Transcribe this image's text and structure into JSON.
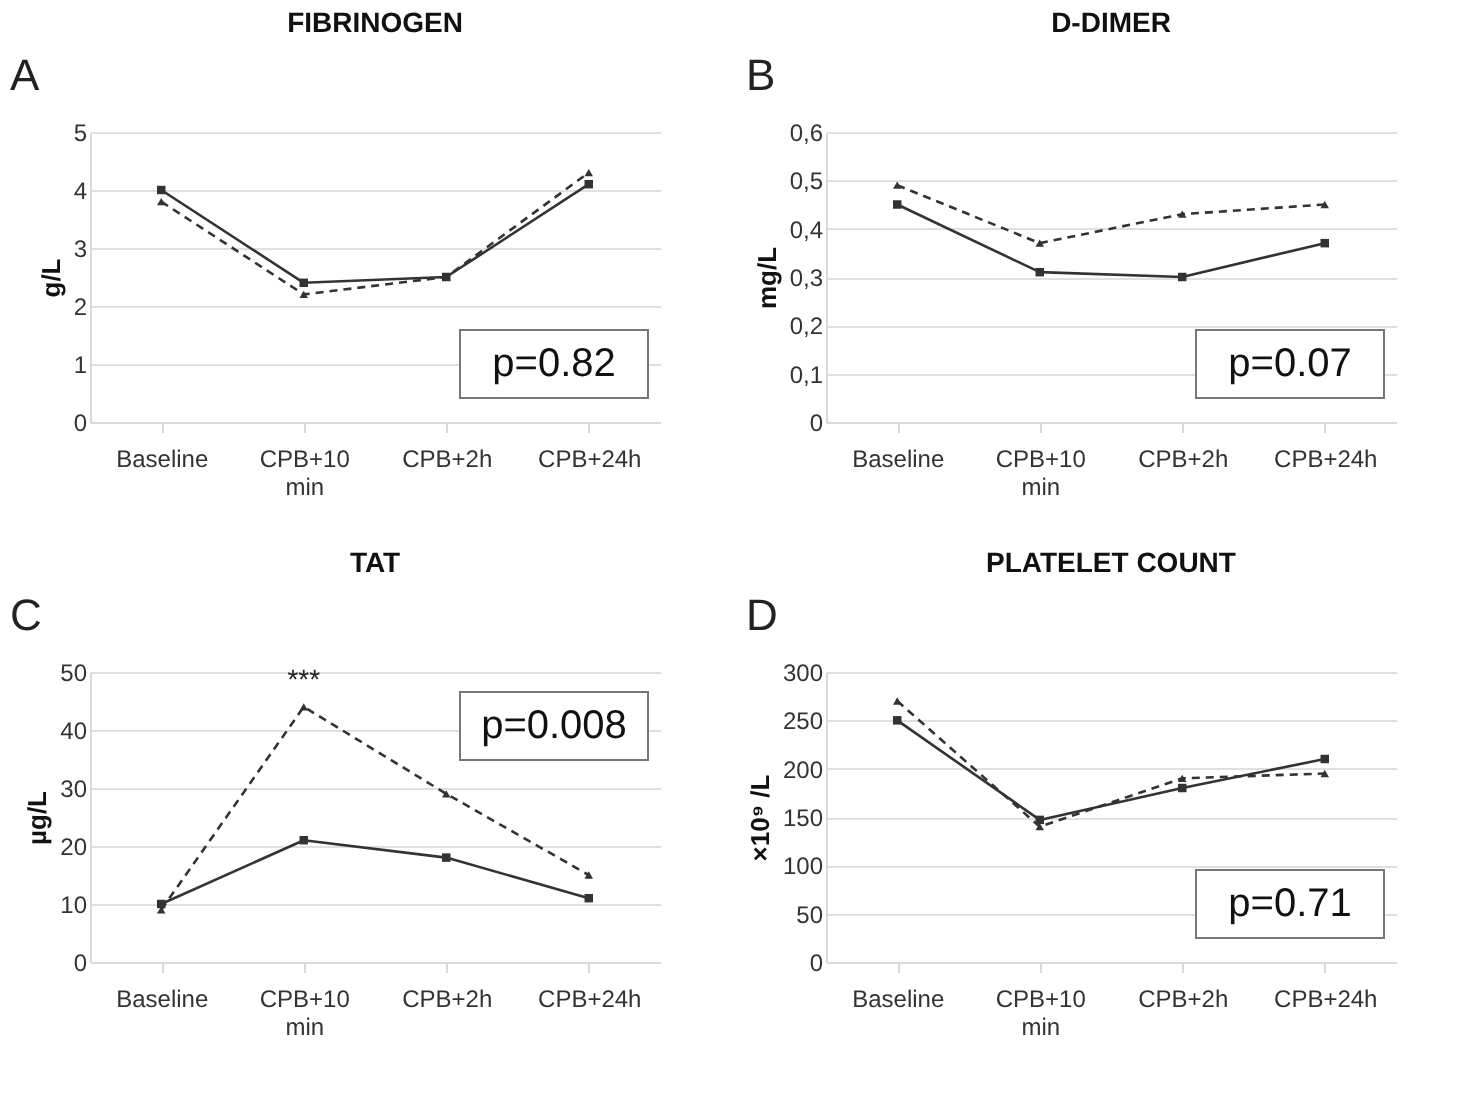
{
  "chart_data": [
    {
      "type": "line",
      "title": "FIBRINOGEN",
      "ylabel": "g/L",
      "categories": [
        "Baseline",
        "CPB+10 min",
        "CPB+2h",
        "CPB+24h"
      ],
      "ylim": [
        0,
        5
      ],
      "yticks": [
        0,
        1,
        2,
        3,
        4,
        5
      ],
      "grid": "y",
      "annotations": [
        "A",
        "p=0.82"
      ],
      "series": [
        {
          "color": "#333333",
          "line_style": "solid",
          "marker": "square",
          "values": [
            4.0,
            2.4,
            2.5,
            4.1
          ]
        },
        {
          "color": "#333333",
          "line_style": "dashed",
          "marker": "triangle",
          "values": [
            3.8,
            2.2,
            2.5,
            4.3
          ]
        }
      ]
    },
    {
      "type": "line",
      "title": "D-DIMER",
      "ylabel": "mg/L",
      "categories": [
        "Baseline",
        "CPB+10 min",
        "CPB+2h",
        "CPB+24h"
      ],
      "ylim": [
        0,
        0.6
      ],
      "yticks": [
        0,
        {
          "value": 0.1,
          "label": "0,1"
        },
        {
          "value": 0.2,
          "label": "0,2"
        },
        {
          "value": 0.3,
          "label": "0,3"
        },
        {
          "value": 0.4,
          "label": "0,4"
        },
        {
          "value": 0.5,
          "label": "0,5"
        },
        {
          "value": 0.6,
          "label": "0,6"
        }
      ],
      "grid": "y",
      "annotations": [
        "B",
        "p=0.07"
      ],
      "series": [
        {
          "color": "#333333",
          "line_style": "solid",
          "marker": "square",
          "values": [
            0.45,
            0.31,
            0.3,
            0.37
          ]
        },
        {
          "color": "#333333",
          "line_style": "dashed",
          "marker": "triangle",
          "values": [
            0.49,
            0.37,
            0.43,
            0.45
          ]
        }
      ]
    },
    {
      "type": "line",
      "title": "TAT",
      "ylabel": "µg/L",
      "categories": [
        "Baseline",
        "CPB+10 min",
        "CPB+2h",
        "CPB+24h"
      ],
      "ylim": [
        0,
        50
      ],
      "yticks": [
        0,
        10,
        20,
        30,
        40,
        50
      ],
      "grid": "y",
      "annotations": [
        "C",
        "p=0.008",
        "***"
      ],
      "series": [
        {
          "color": "#333333",
          "line_style": "solid",
          "marker": "square",
          "values": [
            10,
            21,
            18,
            11
          ]
        },
        {
          "color": "#333333",
          "line_style": "dashed",
          "marker": "triangle",
          "values": [
            9,
            44,
            29,
            15
          ]
        }
      ]
    },
    {
      "type": "line",
      "title": "PLATELET COUNT",
      "ylabel": "×10⁹ /L",
      "categories": [
        "Baseline",
        "CPB+10 min",
        "CPB+2h",
        "CPB+24h"
      ],
      "ylim": [
        0,
        300
      ],
      "yticks": [
        0,
        50,
        100,
        150,
        200,
        250,
        300
      ],
      "grid": "y",
      "annotations": [
        "D",
        "p=0.71"
      ],
      "series": [
        {
          "color": "#333333",
          "line_style": "solid",
          "marker": "square",
          "values": [
            250,
            147,
            180,
            210
          ]
        },
        {
          "color": "#333333",
          "line_style": "dashed",
          "marker": "triangle",
          "values": [
            270,
            140,
            190,
            195
          ]
        }
      ]
    }
  ]
}
